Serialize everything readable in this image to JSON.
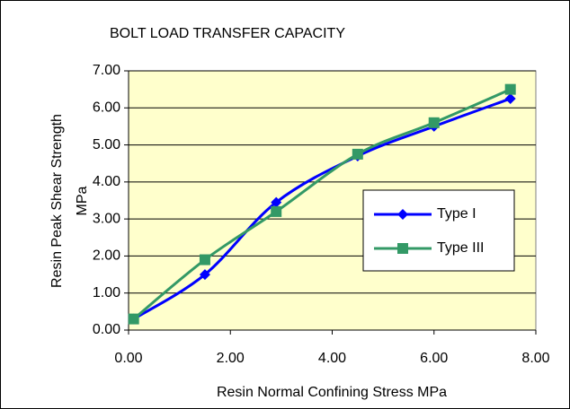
{
  "chart_data": {
    "type": "line",
    "title": "BOLT LOAD TRANSFER CAPACITY",
    "xlabel": "Resin Normal Confining Stress MPa",
    "ylabel": [
      "Resin Peak Shear Strength",
      "MPa"
    ],
    "xlim": [
      0,
      8
    ],
    "xticks": [
      {
        "value": 0,
        "label": "0.00"
      },
      {
        "value": 2,
        "label": "2.00"
      },
      {
        "value": 4,
        "label": "4.00"
      },
      {
        "value": 6,
        "label": "6.00"
      },
      {
        "value": 8,
        "label": "8.00"
      }
    ],
    "ylim": [
      0,
      7
    ],
    "yticks": [
      {
        "value": 0,
        "label": "0.00"
      },
      {
        "value": 1,
        "label": "1.00"
      },
      {
        "value": 2,
        "label": "2.00"
      },
      {
        "value": 3,
        "label": "3.00"
      },
      {
        "value": 4,
        "label": "4.00"
      },
      {
        "value": 5,
        "label": "5.00"
      },
      {
        "value": 6,
        "label": "6.00"
      },
      {
        "value": 7,
        "label": "7.00"
      }
    ],
    "grid": true,
    "series": [
      {
        "name": "Type I",
        "color": "#0000ff",
        "marker": "diamond",
        "x": [
          0.1,
          1.5,
          2.9,
          4.5,
          6.0,
          7.5
        ],
        "values": [
          0.3,
          1.5,
          3.45,
          4.7,
          5.5,
          6.25
        ]
      },
      {
        "name": "Type III",
        "color": "#339966",
        "marker": "square",
        "x": [
          0.1,
          1.5,
          2.9,
          4.5,
          6.0,
          7.5
        ],
        "values": [
          0.3,
          1.9,
          3.2,
          4.75,
          5.6,
          6.5
        ]
      }
    ]
  }
}
